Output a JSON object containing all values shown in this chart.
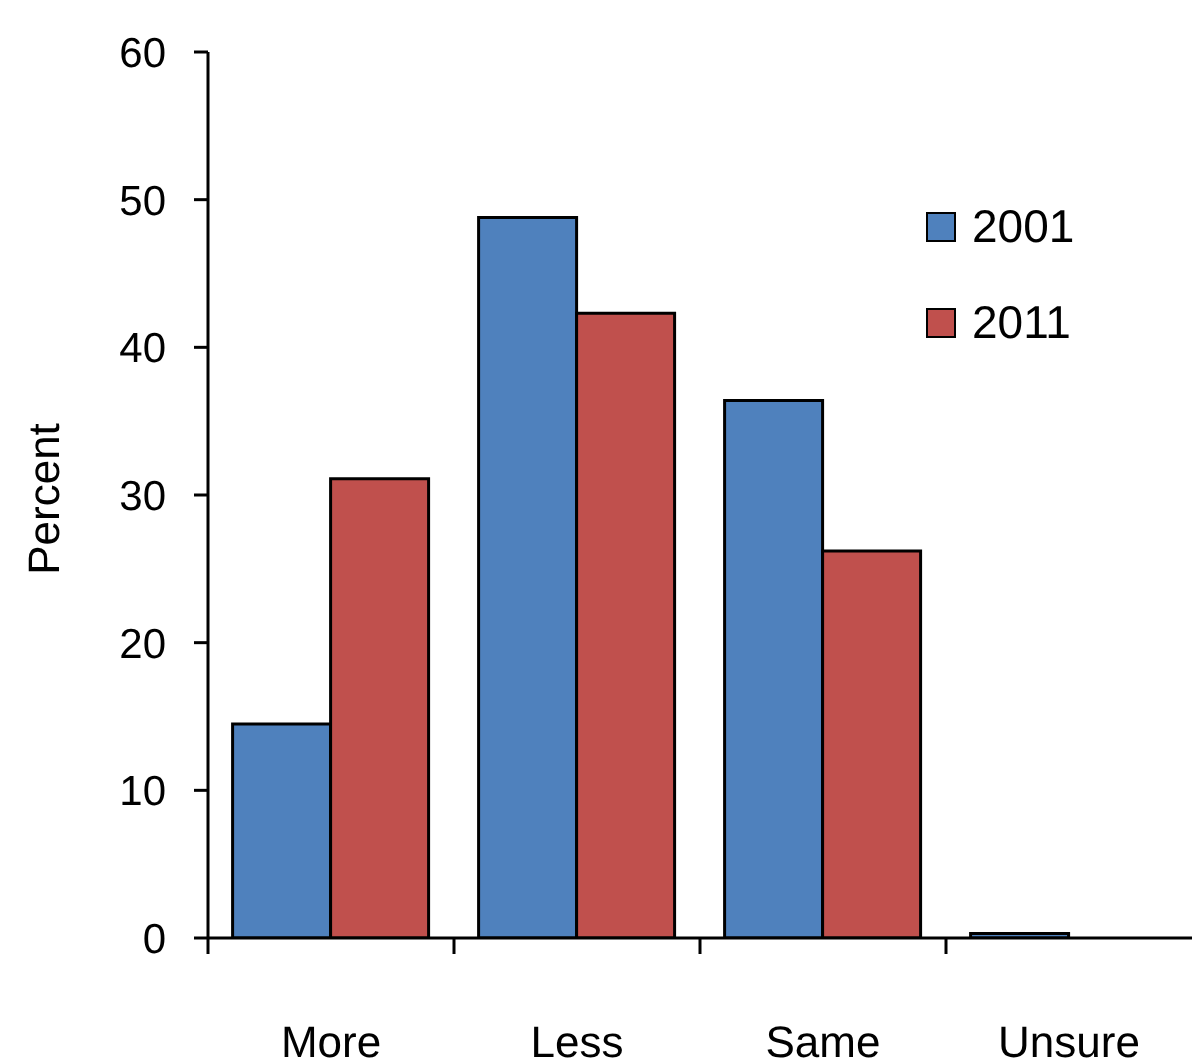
{
  "chart_data": {
    "type": "bar",
    "ylabel": "Percent",
    "categories": [
      "More",
      "Less",
      "Same",
      "Unsure"
    ],
    "series": [
      {
        "name": "2001",
        "color": "#4f81bd",
        "values": [
          14.5,
          48.8,
          36.4,
          0.3
        ]
      },
      {
        "name": "2011",
        "color": "#c0504d",
        "values": [
          31.1,
          42.3,
          26.2,
          0
        ]
      }
    ],
    "ylim": [
      0,
      60
    ],
    "yticks": [
      0,
      10,
      20,
      30,
      40,
      50,
      60
    ],
    "legend": "top right"
  }
}
